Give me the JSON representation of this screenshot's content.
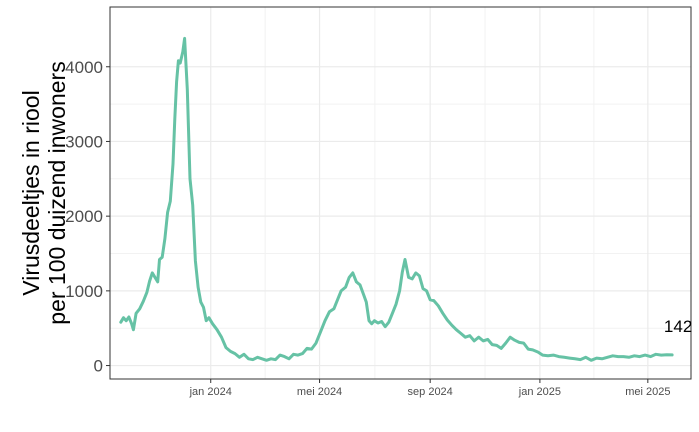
{
  "chart_data": {
    "type": "line",
    "ylabel_lines": [
      "Virusdeeltjes in riool",
      "per 100 duizend inwoners"
    ],
    "xlabel": "",
    "title": "",
    "x_range": [
      "2023-09-11",
      "2025-06-18"
    ],
    "ylim": [
      -180,
      4800
    ],
    "y_ticks": [
      0,
      1000,
      2000,
      3000,
      4000
    ],
    "x_ticks": [
      {
        "date": "2024-01-01",
        "label": "jan 2024"
      },
      {
        "date": "2024-05-01",
        "label": "mei 2024"
      },
      {
        "date": "2024-09-01",
        "label": "sep 2024"
      },
      {
        "date": "2025-01-01",
        "label": "jan 2025"
      },
      {
        "date": "2025-05-01",
        "label": "mei 2025"
      }
    ],
    "grid": true,
    "line_color": "#66c2a5",
    "last_value_label": "142",
    "series": [
      {
        "points": [
          [
            "2023-09-23",
            580
          ],
          [
            "2023-09-26",
            640
          ],
          [
            "2023-09-29",
            600
          ],
          [
            "2023-10-02",
            650
          ],
          [
            "2023-10-05",
            560
          ],
          [
            "2023-10-07",
            480
          ],
          [
            "2023-10-10",
            700
          ],
          [
            "2023-10-14",
            760
          ],
          [
            "2023-10-18",
            860
          ],
          [
            "2023-10-22",
            980
          ],
          [
            "2023-10-25",
            1130
          ],
          [
            "2023-10-28",
            1240
          ],
          [
            "2023-10-31",
            1180
          ],
          [
            "2023-11-03",
            1120
          ],
          [
            "2023-11-05",
            1420
          ],
          [
            "2023-11-08",
            1450
          ],
          [
            "2023-11-11",
            1700
          ],
          [
            "2023-11-14",
            2050
          ],
          [
            "2023-11-17",
            2200
          ],
          [
            "2023-11-20",
            2700
          ],
          [
            "2023-11-22",
            3300
          ],
          [
            "2023-11-24",
            3800
          ],
          [
            "2023-11-26",
            4080
          ],
          [
            "2023-11-28",
            4050
          ],
          [
            "2023-12-01",
            4200
          ],
          [
            "2023-12-03",
            4380
          ],
          [
            "2023-12-06",
            3700
          ],
          [
            "2023-12-09",
            2500
          ],
          [
            "2023-12-12",
            2150
          ],
          [
            "2023-12-15",
            1400
          ],
          [
            "2023-12-18",
            1050
          ],
          [
            "2023-12-21",
            850
          ],
          [
            "2023-12-24",
            780
          ],
          [
            "2023-12-27",
            600
          ],
          [
            "2023-12-30",
            640
          ],
          [
            "2024-01-03",
            560
          ],
          [
            "2024-01-08",
            480
          ],
          [
            "2024-01-13",
            380
          ],
          [
            "2024-01-18",
            240
          ],
          [
            "2024-01-23",
            190
          ],
          [
            "2024-01-28",
            160
          ],
          [
            "2024-02-02",
            110
          ],
          [
            "2024-02-07",
            150
          ],
          [
            "2024-02-12",
            90
          ],
          [
            "2024-02-17",
            80
          ],
          [
            "2024-02-22",
            110
          ],
          [
            "2024-02-27",
            90
          ],
          [
            "2024-03-03",
            70
          ],
          [
            "2024-03-08",
            90
          ],
          [
            "2024-03-13",
            80
          ],
          [
            "2024-03-18",
            140
          ],
          [
            "2024-03-23",
            120
          ],
          [
            "2024-03-28",
            90
          ],
          [
            "2024-04-02",
            150
          ],
          [
            "2024-04-07",
            140
          ],
          [
            "2024-04-12",
            160
          ],
          [
            "2024-04-17",
            230
          ],
          [
            "2024-04-22",
            220
          ],
          [
            "2024-04-27",
            300
          ],
          [
            "2024-05-02",
            450
          ],
          [
            "2024-05-07",
            600
          ],
          [
            "2024-05-12",
            720
          ],
          [
            "2024-05-17",
            760
          ],
          [
            "2024-05-20",
            850
          ],
          [
            "2024-05-25",
            1000
          ],
          [
            "2024-05-30",
            1050
          ],
          [
            "2024-06-03",
            1180
          ],
          [
            "2024-06-07",
            1240
          ],
          [
            "2024-06-11",
            1120
          ],
          [
            "2024-06-15",
            1080
          ],
          [
            "2024-06-19",
            950
          ],
          [
            "2024-06-22",
            850
          ],
          [
            "2024-06-25",
            600
          ],
          [
            "2024-06-28",
            560
          ],
          [
            "2024-07-01",
            600
          ],
          [
            "2024-07-05",
            570
          ],
          [
            "2024-07-09",
            590
          ],
          [
            "2024-07-13",
            520
          ],
          [
            "2024-07-17",
            580
          ],
          [
            "2024-07-21",
            700
          ],
          [
            "2024-07-25",
            820
          ],
          [
            "2024-07-29",
            1000
          ],
          [
            "2024-08-01",
            1250
          ],
          [
            "2024-08-04",
            1420
          ],
          [
            "2024-08-08",
            1180
          ],
          [
            "2024-08-12",
            1160
          ],
          [
            "2024-08-16",
            1240
          ],
          [
            "2024-08-20",
            1200
          ],
          [
            "2024-08-24",
            1030
          ],
          [
            "2024-08-28",
            1000
          ],
          [
            "2024-09-01",
            880
          ],
          [
            "2024-09-05",
            870
          ],
          [
            "2024-09-10",
            800
          ],
          [
            "2024-09-15",
            700
          ],
          [
            "2024-09-20",
            610
          ],
          [
            "2024-09-25",
            540
          ],
          [
            "2024-09-30",
            480
          ],
          [
            "2024-10-05",
            430
          ],
          [
            "2024-10-10",
            380
          ],
          [
            "2024-10-15",
            400
          ],
          [
            "2024-10-20",
            330
          ],
          [
            "2024-10-25",
            380
          ],
          [
            "2024-10-30",
            330
          ],
          [
            "2024-11-04",
            350
          ],
          [
            "2024-11-09",
            280
          ],
          [
            "2024-11-14",
            270
          ],
          [
            "2024-11-19",
            230
          ],
          [
            "2024-11-24",
            300
          ],
          [
            "2024-11-29",
            380
          ],
          [
            "2024-12-04",
            340
          ],
          [
            "2024-12-09",
            310
          ],
          [
            "2024-12-14",
            300
          ],
          [
            "2024-12-19",
            220
          ],
          [
            "2024-12-24",
            210
          ],
          [
            "2024-12-30",
            180
          ],
          [
            "2025-01-04",
            140
          ],
          [
            "2025-01-10",
            130
          ],
          [
            "2025-01-16",
            140
          ],
          [
            "2025-01-22",
            120
          ],
          [
            "2025-01-28",
            110
          ],
          [
            "2025-02-03",
            100
          ],
          [
            "2025-02-09",
            90
          ],
          [
            "2025-02-15",
            80
          ],
          [
            "2025-02-21",
            110
          ],
          [
            "2025-02-27",
            70
          ],
          [
            "2025-03-05",
            100
          ],
          [
            "2025-03-11",
            90
          ],
          [
            "2025-03-17",
            110
          ],
          [
            "2025-03-23",
            130
          ],
          [
            "2025-03-29",
            120
          ],
          [
            "2025-04-04",
            120
          ],
          [
            "2025-04-10",
            110
          ],
          [
            "2025-04-16",
            130
          ],
          [
            "2025-04-22",
            120
          ],
          [
            "2025-04-28",
            140
          ],
          [
            "2025-05-04",
            120
          ],
          [
            "2025-05-10",
            150
          ],
          [
            "2025-05-16",
            140
          ],
          [
            "2025-05-22",
            145
          ],
          [
            "2025-05-28",
            142
          ]
        ]
      }
    ]
  }
}
